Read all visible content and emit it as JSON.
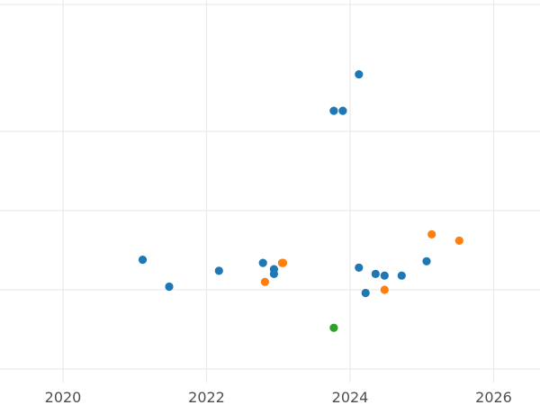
{
  "chart_data": {
    "type": "scatter",
    "title": "",
    "xlabel": "",
    "ylabel": "",
    "x_axis": {
      "type": "date",
      "ticks": [
        "2020",
        "2022",
        "2024",
        "2026"
      ]
    },
    "y_axis": {
      "tick_labels_visible": false,
      "gridline_count": 5
    },
    "grid": true,
    "legend": "none",
    "series": [
      {
        "color": "#1f77b4",
        "points": [
          {
            "x": "2021-02-10",
            "y": 0.19
          },
          {
            "x": "2021-06-25",
            "y": 0.02
          },
          {
            "x": "2022-03-05",
            "y": 0.12
          },
          {
            "x": "2022-10-15",
            "y": 0.17
          },
          {
            "x": "2022-12-10",
            "y": 0.13
          },
          {
            "x": "2022-12-10",
            "y": 0.1
          },
          {
            "x": "2023-10-10",
            "y": 1.13
          },
          {
            "x": "2023-11-25",
            "y": 1.13
          },
          {
            "x": "2024-02-15",
            "y": 1.36
          },
          {
            "x": "2024-02-15",
            "y": 0.14
          },
          {
            "x": "2024-03-20",
            "y": -0.02
          },
          {
            "x": "2024-05-10",
            "y": 0.1
          },
          {
            "x": "2024-06-25",
            "y": 0.09
          },
          {
            "x": "2024-09-20",
            "y": 0.09
          },
          {
            "x": "2025-01-25",
            "y": 0.18
          }
        ]
      },
      {
        "color": "#ff7f0e",
        "points": [
          {
            "x": "2022-10-25",
            "y": 0.05
          },
          {
            "x": "2023-01-20",
            "y": 0.17
          },
          {
            "x": "2023-01-25",
            "y": 0.17
          },
          {
            "x": "2024-06-25",
            "y": 0.0
          },
          {
            "x": "2025-02-20",
            "y": 0.35
          },
          {
            "x": "2025-07-10",
            "y": 0.31
          }
        ]
      },
      {
        "color": "#2ca02c",
        "points": [
          {
            "x": "2023-10-10",
            "y": -0.24
          }
        ]
      }
    ]
  }
}
